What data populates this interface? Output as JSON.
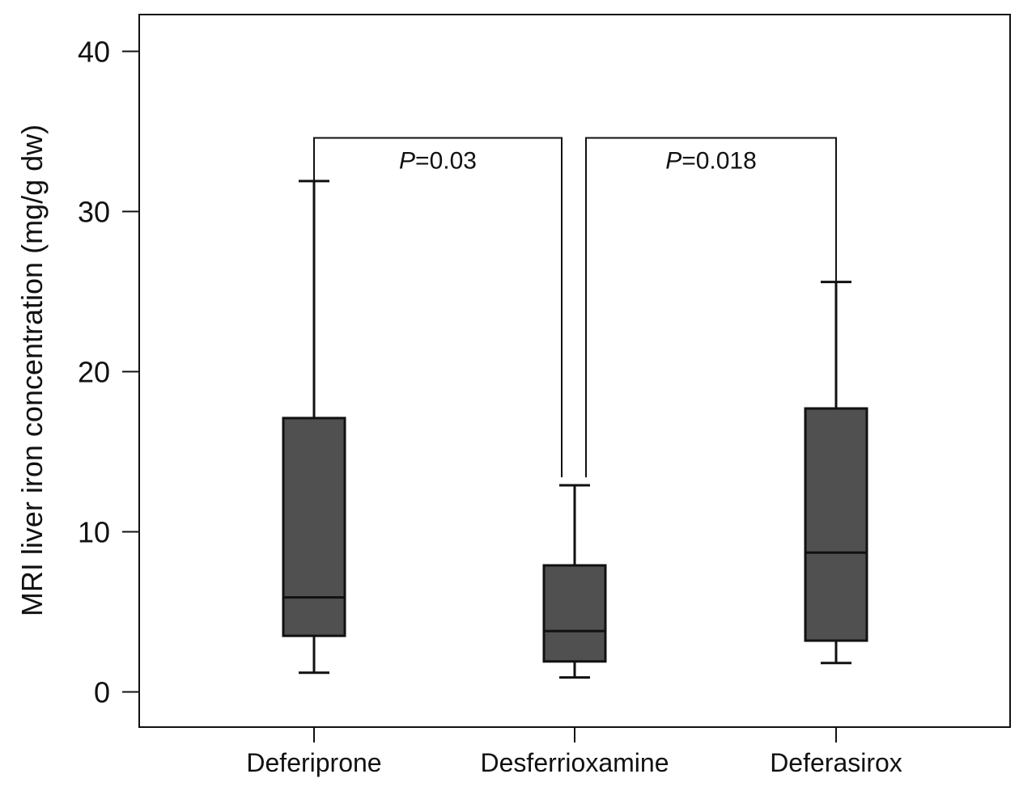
{
  "chart_data": {
    "type": "boxplot",
    "title": "",
    "xlabel": "",
    "ylabel": "MRI liver iron concentration (mg/g dw)",
    "ylim": [
      -2.2,
      42.3
    ],
    "yticks": [
      0,
      10,
      20,
      30,
      40
    ],
    "grid": false,
    "categories": [
      "Deferiprone",
      "Desferrioxamine",
      "Deferasirox"
    ],
    "boxes": [
      {
        "category": "Deferiprone",
        "min": 1.2,
        "q1": 3.5,
        "median": 5.9,
        "q3": 17.1,
        "max": 31.9
      },
      {
        "category": "Desferrioxamine",
        "min": 0.9,
        "q1": 1.9,
        "median": 3.8,
        "q3": 7.9,
        "max": 12.9
      },
      {
        "category": "Deferasirox",
        "min": 1.8,
        "q1": 3.2,
        "median": 8.7,
        "q3": 17.7,
        "max": 25.6
      }
    ],
    "box_color": "#505050",
    "annotations": [
      {
        "from": "Deferiprone",
        "to": "Desferrioxamine",
        "p_italic": "P",
        "p_rest": "=0.03",
        "bracket_y": 34.6,
        "right_drop_to": 13.4
      },
      {
        "from": "Desferrioxamine",
        "to": "Deferasirox",
        "p_italic": "P",
        "p_rest": "=0.018",
        "bracket_y": 34.6,
        "left_drop_to": 13.4
      }
    ]
  }
}
